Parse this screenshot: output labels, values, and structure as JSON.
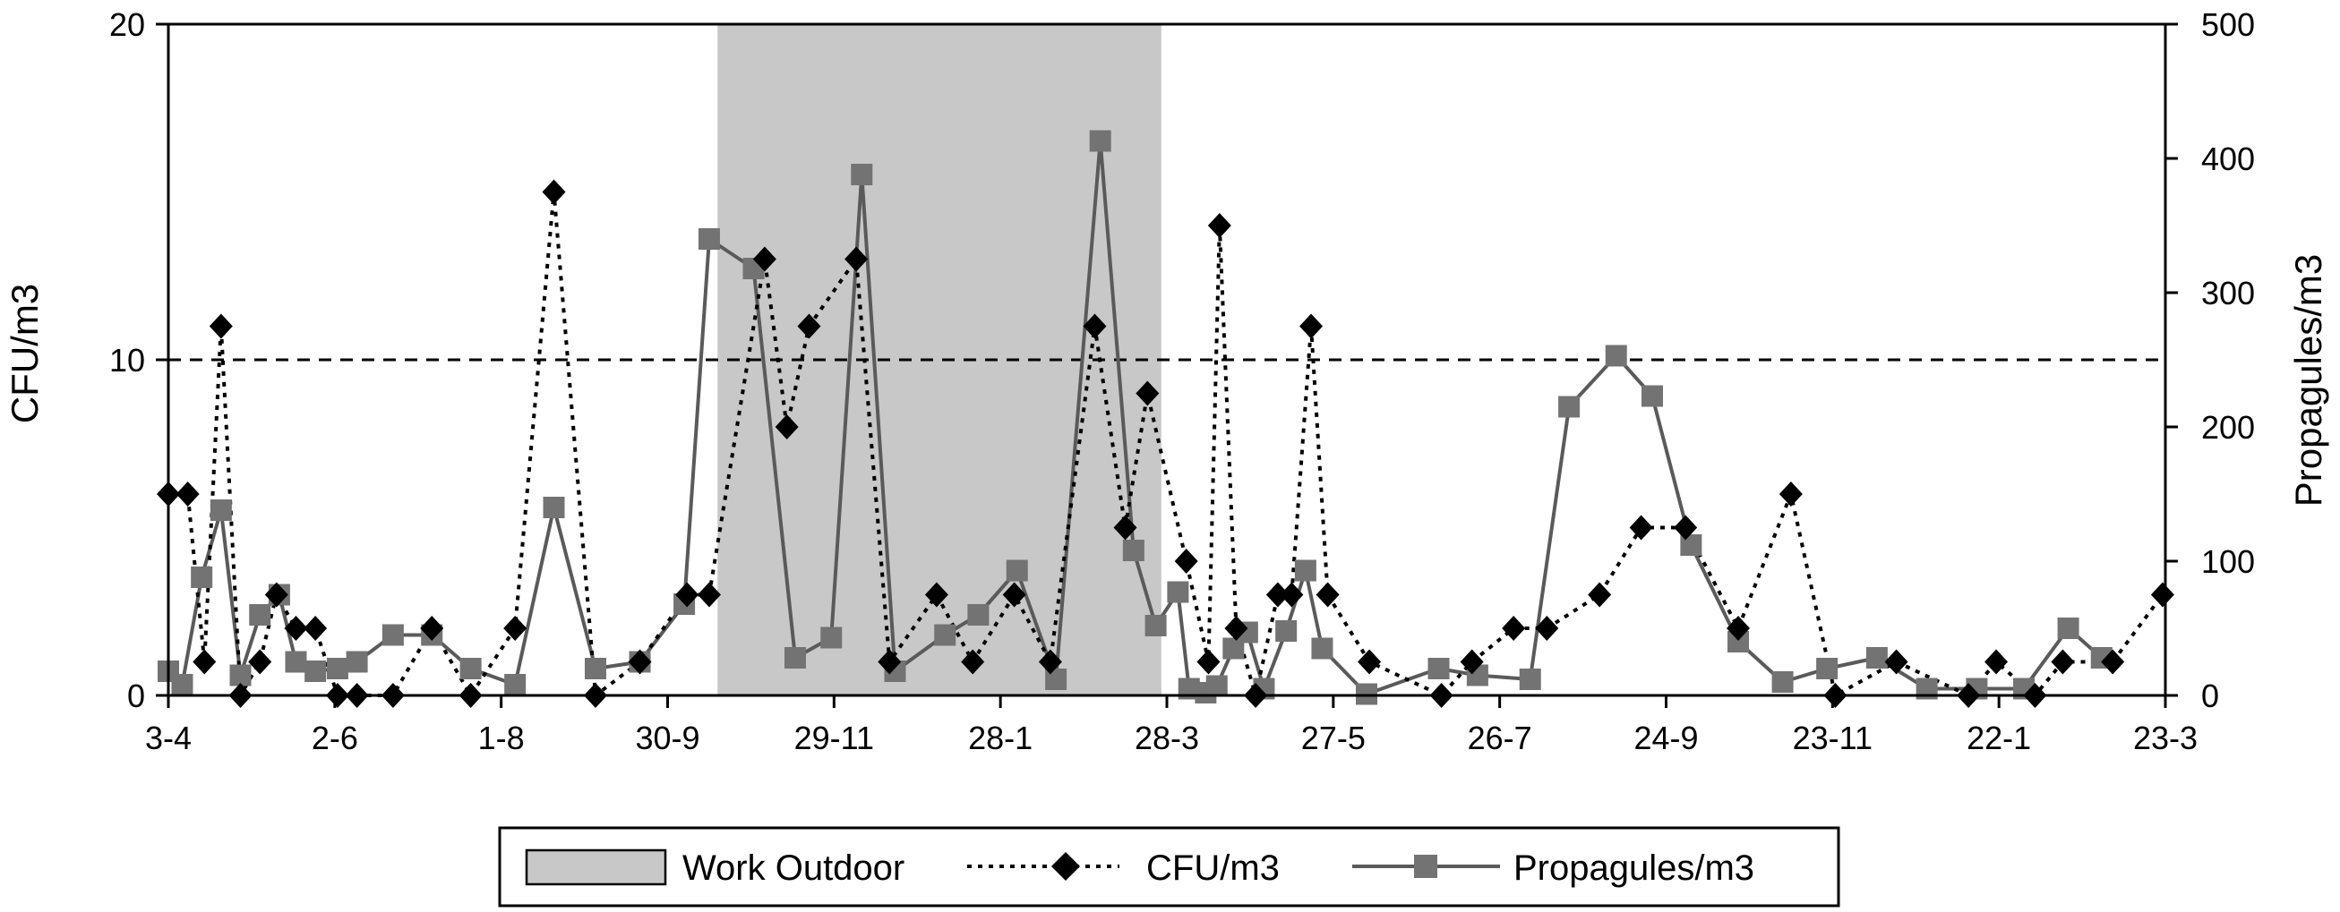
{
  "chart_data": {
    "type": "line",
    "x_ticks": [
      "3-4",
      "2-6",
      "1-8",
      "30-9",
      "29-11",
      "28-1",
      "28-3",
      "27-5",
      "26-7",
      "24-9",
      "23-11",
      "22-1",
      "23-3"
    ],
    "xlim": [
      0,
      720
    ],
    "left_axis": {
      "label": "CFU/m3",
      "ylim": [
        0,
        20
      ],
      "ticks": [
        "0",
        "10",
        "20"
      ]
    },
    "right_axis": {
      "label": "Propagules/m3",
      "ylim": [
        0,
        500
      ],
      "ticks": [
        "0",
        "100",
        "200",
        "300",
        "400",
        "500"
      ]
    },
    "shaded_region": {
      "name": "Work Outdoor",
      "x_start": 198,
      "x_end": 358,
      "color": "#c8c8c8"
    },
    "reference_line": {
      "axis": "left",
      "value": 10,
      "style": "dashed"
    },
    "series": [
      {
        "name": "CFU/m3",
        "axis": "left",
        "style": "dotted",
        "marker": "diamond",
        "color": "#000000",
        "points": [
          [
            0,
            6
          ],
          [
            7,
            6
          ],
          [
            13,
            1
          ],
          [
            19,
            11
          ],
          [
            26,
            0
          ],
          [
            33,
            1
          ],
          [
            39,
            3
          ],
          [
            46,
            2
          ],
          [
            53,
            2
          ],
          [
            61,
            0
          ],
          [
            68,
            0
          ],
          [
            81,
            0
          ],
          [
            95,
            2
          ],
          [
            109,
            0
          ],
          [
            125,
            2
          ],
          [
            139,
            15
          ],
          [
            154,
            0
          ],
          [
            170,
            1
          ],
          [
            187,
            3
          ],
          [
            195,
            3
          ],
          [
            215,
            13
          ],
          [
            223,
            8
          ],
          [
            231,
            11
          ],
          [
            248,
            13
          ],
          [
            260,
            1
          ],
          [
            277,
            3
          ],
          [
            290,
            1
          ],
          [
            305,
            3
          ],
          [
            318,
            1
          ],
          [
            334,
            11
          ],
          [
            345,
            5
          ],
          [
            353,
            9
          ],
          [
            367,
            4
          ],
          [
            375,
            1
          ],
          [
            379,
            14
          ],
          [
            385,
            2
          ],
          [
            392,
            0
          ],
          [
            400,
            3
          ],
          [
            405,
            3
          ],
          [
            412,
            11
          ],
          [
            418,
            3
          ],
          [
            433,
            1
          ],
          [
            459,
            0
          ],
          [
            470,
            1
          ],
          [
            485,
            2
          ],
          [
            497,
            2
          ],
          [
            516,
            3
          ],
          [
            531,
            5
          ],
          [
            547,
            5
          ],
          [
            566,
            2
          ],
          [
            585,
            6
          ],
          [
            601,
            0
          ],
          [
            623,
            1
          ],
          [
            649,
            0
          ],
          [
            659,
            1
          ],
          [
            673,
            0
          ],
          [
            683,
            1
          ],
          [
            701,
            1
          ],
          [
            719,
            3
          ]
        ]
      },
      {
        "name": "Propagules/m3",
        "axis": "right",
        "style": "solid",
        "marker": "square",
        "color": "#808080",
        "points": [
          [
            0,
            18
          ],
          [
            5,
            8
          ],
          [
            12,
            88
          ],
          [
            19,
            138
          ],
          [
            26,
            15
          ],
          [
            33,
            60
          ],
          [
            40,
            75
          ],
          [
            46,
            25
          ],
          [
            53,
            18
          ],
          [
            61,
            20
          ],
          [
            68,
            25
          ],
          [
            81,
            45
          ],
          [
            95,
            45
          ],
          [
            109,
            20
          ],
          [
            125,
            8
          ],
          [
            139,
            140
          ],
          [
            154,
            20
          ],
          [
            170,
            25
          ],
          [
            186,
            68
          ],
          [
            195,
            340
          ],
          [
            211,
            318
          ],
          [
            226,
            28
          ],
          [
            239,
            43
          ],
          [
            250,
            388
          ],
          [
            262,
            18
          ],
          [
            280,
            45
          ],
          [
            292,
            60
          ],
          [
            306,
            93
          ],
          [
            320,
            12
          ],
          [
            336,
            413
          ],
          [
            348,
            108
          ],
          [
            356,
            52
          ],
          [
            364,
            77
          ],
          [
            368,
            5
          ],
          [
            374,
            2
          ],
          [
            378,
            7
          ],
          [
            384,
            35
          ],
          [
            389,
            47
          ],
          [
            395,
            5
          ],
          [
            403,
            48
          ],
          [
            410,
            93
          ],
          [
            416,
            35
          ],
          [
            432,
            1
          ],
          [
            458,
            20
          ],
          [
            472,
            15
          ],
          [
            491,
            12
          ],
          [
            505,
            215
          ],
          [
            522,
            253
          ],
          [
            535,
            223
          ],
          [
            549,
            112
          ],
          [
            566,
            40
          ],
          [
            582,
            10
          ],
          [
            598,
            20
          ],
          [
            616,
            28
          ],
          [
            634,
            5
          ],
          [
            652,
            5
          ],
          [
            669,
            5
          ],
          [
            685,
            50
          ],
          [
            697,
            28
          ]
        ]
      }
    ],
    "legend": {
      "placement": "bottom-center",
      "items": [
        {
          "label": "Work Outdoor",
          "kind": "patch"
        },
        {
          "label": "CFU/m3",
          "kind": "dotted-diamond"
        },
        {
          "label": "Propagules/m3",
          "kind": "solid-square"
        }
      ]
    }
  }
}
